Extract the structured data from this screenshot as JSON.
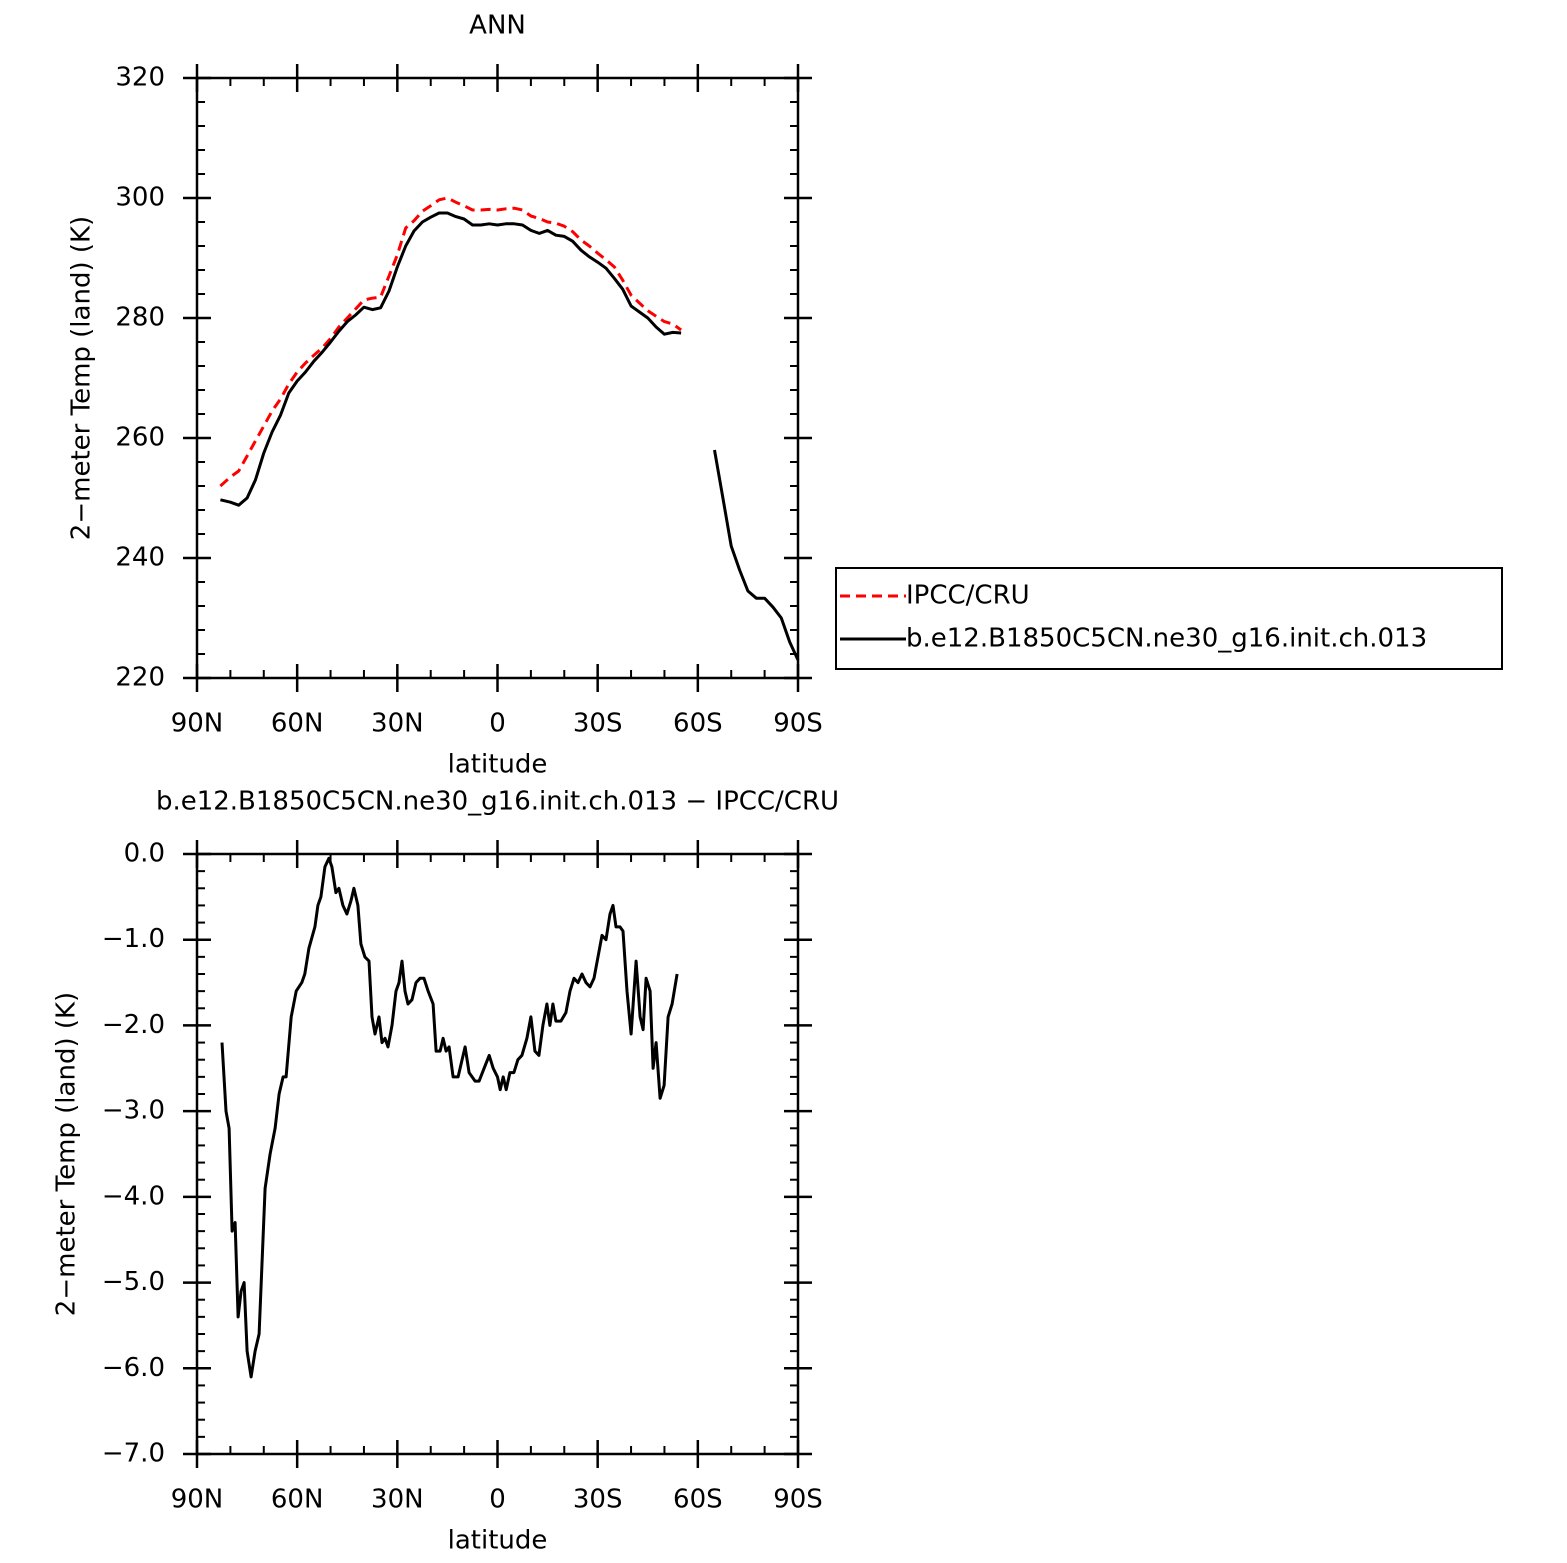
{
  "chart_data": [
    {
      "type": "line",
      "title": "ANN",
      "xlabel": "latitude",
      "ylabel": "2−meter Temp (land) (K)",
      "xlim": [
        90,
        -90
      ],
      "ylim": [
        220,
        320
      ],
      "xticks": [
        {
          "value": 90,
          "label": "90N"
        },
        {
          "value": 60,
          "label": "60N"
        },
        {
          "value": 30,
          "label": "30N"
        },
        0,
        {
          "value": -30,
          "label": "30S"
        },
        {
          "value": -60,
          "label": "60S"
        },
        {
          "value": -90,
          "label": "90S"
        }
      ],
      "yticks": [
        220,
        240,
        260,
        280,
        300,
        320
      ],
      "legend": "right",
      "x": [
        83,
        80,
        77.5,
        75,
        72.5,
        70,
        67.5,
        65,
        62.5,
        60,
        57.5,
        55,
        52.5,
        50,
        47.5,
        45,
        42.5,
        40,
        37.5,
        35,
        32.5,
        30,
        27.5,
        25,
        22.5,
        20,
        17.5,
        15,
        12.5,
        10,
        7.5,
        5,
        2.5,
        0,
        -2.5,
        -5,
        -7.5,
        -10,
        -12.5,
        -15,
        -17.5,
        -20,
        -22.5,
        -25,
        -27.5,
        -30,
        -32.5,
        -35,
        -37.5,
        -40,
        -42.5,
        -45,
        -47.5,
        -50,
        -52.5,
        -55,
        -57.5,
        -60,
        -62.5,
        -65,
        -67.5,
        -70,
        -72.5,
        -75,
        -77.5,
        -80,
        -82.5,
        -85,
        -87.5,
        -90
      ],
      "series": [
        {
          "name": "IPCC/CRU",
          "color": "#ff0000",
          "linestyle": "dashed",
          "values": [
            252,
            253.5,
            254.5,
            257,
            259.5,
            262,
            264.5,
            266.5,
            269,
            271,
            272.5,
            273.8,
            275,
            276.6,
            278.5,
            280,
            281.5,
            283,
            283.3,
            283.5,
            287,
            290.5,
            295,
            296.2,
            297.8,
            298.7,
            299.7,
            300,
            299.3,
            298.7,
            298,
            298,
            298.1,
            298,
            298.2,
            298.3,
            298,
            297,
            296.6,
            296,
            295.8,
            295.3,
            294.4,
            293,
            292,
            290.8,
            289.7,
            288.5,
            286.3,
            283.8,
            282.5,
            281.2,
            280.3,
            279.4,
            279,
            278,
            null,
            null,
            null,
            null,
            null,
            null,
            null,
            null,
            null,
            null,
            null,
            null,
            null,
            null
          ]
        },
        {
          "name": "b.e12.B1850C5CN.ne30_g16.init.ch.013",
          "color": "#000000",
          "linestyle": "solid",
          "values": [
            249.7,
            249.3,
            248.8,
            250,
            253,
            257.5,
            261,
            263.8,
            267.5,
            269.5,
            271,
            272.8,
            274.3,
            276,
            277.8,
            279.4,
            280.5,
            281.8,
            281.4,
            281.7,
            284.5,
            288.5,
            292,
            294.5,
            296,
            296.8,
            297.5,
            297.5,
            296.9,
            296.5,
            295.5,
            295.5,
            295.7,
            295.5,
            295.7,
            295.7,
            295.5,
            294.6,
            294.1,
            294.6,
            293.8,
            293.6,
            292.8,
            291.3,
            290.2,
            289.3,
            288.3,
            286.6,
            284.8,
            282,
            281,
            280,
            278.5,
            277.3,
            277.6,
            277.5,
            null,
            null,
            null,
            258,
            250,
            242,
            238,
            234.5,
            233.3,
            233.3,
            231.8,
            230,
            226,
            223
          ]
        }
      ]
    },
    {
      "type": "line",
      "title": "b.e12.B1850C5CN.ne30_g16.init.ch.013 − IPCC/CRU",
      "xlabel": "latitude",
      "ylabel": "2−meter Temp (land) (K)",
      "xlim": [
        90,
        -90
      ],
      "ylim": [
        -7,
        0
      ],
      "xticks": [
        {
          "value": 90,
          "label": "90N"
        },
        {
          "value": 60,
          "label": "60N"
        },
        {
          "value": 30,
          "label": "30N"
        },
        0,
        {
          "value": -30,
          "label": "30S"
        },
        {
          "value": -60,
          "label": "60S"
        },
        {
          "value": -90,
          "label": "90S"
        }
      ],
      "yticks": [
        {
          "value": -7,
          "label": "−7.0"
        },
        {
          "value": -6,
          "label": "−6.0"
        },
        {
          "value": -5,
          "label": "−5.0"
        },
        {
          "value": -4,
          "label": "−4.0"
        },
        {
          "value": -3,
          "label": "−3.0"
        },
        {
          "value": -2,
          "label": "−2.0"
        },
        {
          "value": -1,
          "label": "−1.0"
        },
        {
          "value": 0,
          "label": "0.0"
        }
      ],
      "x": [
        82.5,
        81.3,
        80.4,
        79.5,
        78.6,
        77.7,
        76.8,
        75.9,
        75,
        73.8,
        72.6,
        71.4,
        69.6,
        68.1,
        66.6,
        65.4,
        64.2,
        63.3,
        61.8,
        60.3,
        58.6,
        57.7,
        56.5,
        54.7,
        53.8,
        52.9,
        51.7,
        50.5,
        49.6,
        48.4,
        47.5,
        46.3,
        45.1,
        43.9,
        43,
        41.8,
        40.9,
        39.7,
        38.5,
        37.6,
        36.7,
        35.5,
        34.6,
        33.7,
        32.8,
        31.6,
        30.4,
        29.5,
        28.6,
        27.7,
        26.8,
        25.6,
        24.4,
        23.2,
        22,
        20.8,
        19.3,
        18.4,
        17.2,
        16.3,
        15.4,
        14.5,
        13.3,
        11.8,
        10.6,
        9.7,
        8.5,
        6.7,
        5.5,
        4,
        2.5,
        1.3,
        0,
        -0.8,
        -1.7,
        -2.6,
        -3.7,
        -4.9,
        -6.1,
        -7.3,
        -8.8,
        -10,
        -11.2,
        -12.4,
        -13.6,
        -14.8,
        -15.7,
        -16.6,
        -17.5,
        -19,
        -20.5,
        -21.7,
        -22.9,
        -24.1,
        -25.3,
        -26.5,
        -27.7,
        -28.9,
        -30.1,
        -31.3,
        -32.5,
        -33.7,
        -34.6,
        -35.5,
        -36.7,
        -37.6,
        -38.8,
        -40,
        -41.5,
        -42.7,
        -43.6,
        -44.5,
        -45.7,
        -46.6,
        -47.5,
        -48.7,
        -49.9,
        -51.1,
        -52.3,
        -53.8
      ],
      "series": [
        {
          "color": "#000000",
          "linestyle": "solid",
          "values": [
            -2.2,
            -3,
            -3.2,
            -4.4,
            -4.3,
            -5.4,
            -5.1,
            -5,
            -5.8,
            -6.1,
            -5.8,
            -5.6,
            -3.9,
            -3.5,
            -3.2,
            -2.8,
            -2.6,
            -2.6,
            -1.9,
            -1.6,
            -1.5,
            -1.4,
            -1.1,
            -0.85,
            -0.6,
            -0.5,
            -0.15,
            -0.05,
            -0.15,
            -0.45,
            -0.4,
            -0.6,
            -0.7,
            -0.55,
            -0.4,
            -0.6,
            -1.05,
            -1.2,
            -1.25,
            -1.9,
            -2.1,
            -1.9,
            -2.2,
            -2.15,
            -2.25,
            -2,
            -1.6,
            -1.5,
            -1.25,
            -1.6,
            -1.75,
            -1.7,
            -1.5,
            -1.45,
            -1.45,
            -1.6,
            -1.75,
            -2.3,
            -2.3,
            -2.15,
            -2.3,
            -2.25,
            -2.6,
            -2.6,
            -2.4,
            -2.25,
            -2.55,
            -2.65,
            -2.65,
            -2.5,
            -2.35,
            -2.5,
            -2.6,
            -2.75,
            -2.6,
            -2.75,
            -2.55,
            -2.55,
            -2.4,
            -2.35,
            -2.15,
            -1.9,
            -2.3,
            -2.35,
            -2,
            -1.75,
            -2,
            -1.75,
            -1.95,
            -1.95,
            -1.85,
            -1.6,
            -1.45,
            -1.5,
            -1.4,
            -1.5,
            -1.55,
            -1.45,
            -1.2,
            -0.95,
            -1,
            -0.7,
            -0.6,
            -0.85,
            -0.85,
            -0.9,
            -1.6,
            -2.1,
            -1.25,
            -1.9,
            -2.05,
            -1.45,
            -1.6,
            -2.5,
            -2.2,
            -2.85,
            -2.7,
            -1.9,
            -1.75,
            -1.4
          ]
        }
      ]
    }
  ]
}
